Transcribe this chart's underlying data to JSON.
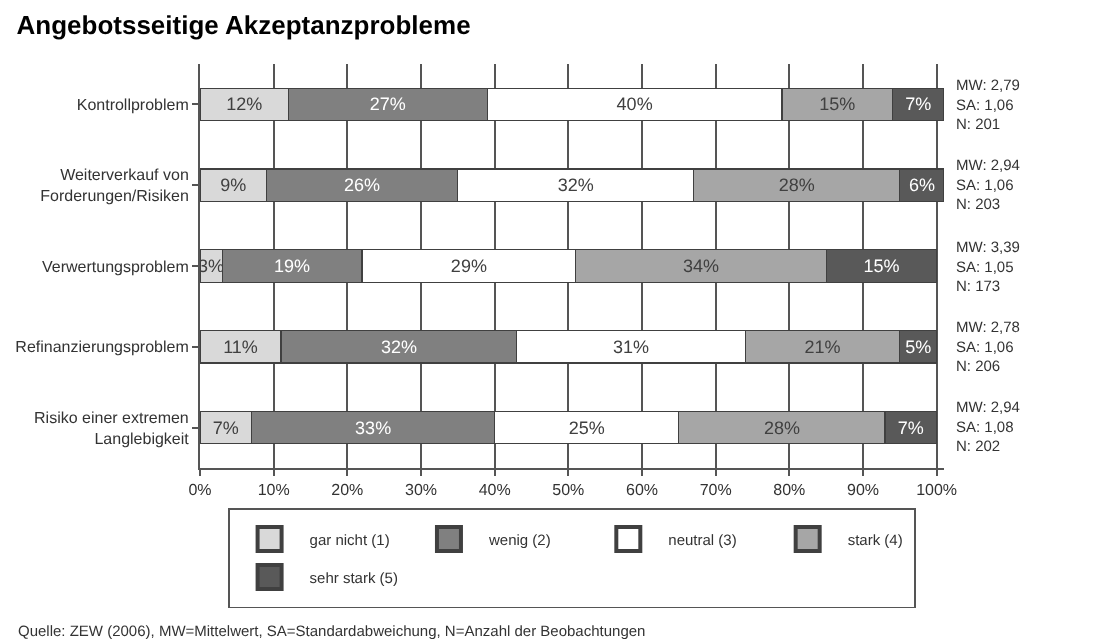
{
  "chart_data": {
    "type": "bar",
    "orientation": "horizontal",
    "stacked": true,
    "title": "Angebotsseitige Akzeptanzprobleme",
    "categories": [
      "Kontrollproblem",
      "Weiterverkauf von Forderungen/Risiken",
      "Verwertungsproblem",
      "Refinanzierungsproblem",
      "Risiko einer extremen Langlebigkeit"
    ],
    "series": [
      {
        "name": "gar nicht (1)",
        "color": "#d9d9d9",
        "values": [
          12,
          9,
          3,
          11,
          7
        ],
        "value_labels": [
          "12%",
          "9%",
          "3%",
          "11%",
          "7%"
        ]
      },
      {
        "name": "wenig (2)",
        "color": "#808080",
        "values": [
          27,
          26,
          19,
          32,
          33
        ],
        "value_labels": [
          "27%",
          "26%",
          "19%",
          "32%",
          "33%"
        ]
      },
      {
        "name": "neutral (3)",
        "color": "#ffffff",
        "values": [
          40,
          32,
          29,
          31,
          25
        ],
        "value_labels": [
          "40%",
          "32%",
          "29%",
          "31%",
          "25%"
        ]
      },
      {
        "name": "stark (4)",
        "color": "#a6a6a6",
        "values": [
          15,
          28,
          34,
          21,
          28
        ],
        "value_labels": [
          "15%",
          "28%",
          "34%",
          "21%",
          "28%"
        ]
      },
      {
        "name": "sehr stark (5)",
        "color": "#595959",
        "values": [
          7,
          6,
          15,
          5,
          7
        ],
        "value_labels": [
          "7%",
          "6%",
          "15%",
          "5%",
          "7%"
        ]
      }
    ],
    "xlim": [
      0,
      101
    ],
    "xticks": [
      {
        "value": 0,
        "label": "0%"
      },
      {
        "value": 10,
        "label": "10%"
      },
      {
        "value": 20,
        "label": "20%"
      },
      {
        "value": 30,
        "label": "30%"
      },
      {
        "value": 40,
        "label": "40%"
      },
      {
        "value": 50,
        "label": "50%"
      },
      {
        "value": 60,
        "label": "60%"
      },
      {
        "value": 70,
        "label": "70%"
      },
      {
        "value": 80,
        "label": "80%"
      },
      {
        "value": 90,
        "label": "90%"
      },
      {
        "value": 100,
        "label": "100%"
      }
    ],
    "grid": "x",
    "legend": "bottom",
    "annotations": [
      "MW: 2,79\nSA: 1,06\nN: 201",
      "MW: 2,94\nSA: 1,06\nN: 203",
      "MW: 3,39\nSA: 1,05\nN: 173",
      "MW: 2,78\nSA: 1,06\nN: 206",
      "MW: 2,94\nSA: 1,08\nN: 202",
      "Quelle: ZEW (2006), MW=Mittelwert, SA=Standardabweichung, N=Anzahl der Beobachtungen"
    ]
  }
}
